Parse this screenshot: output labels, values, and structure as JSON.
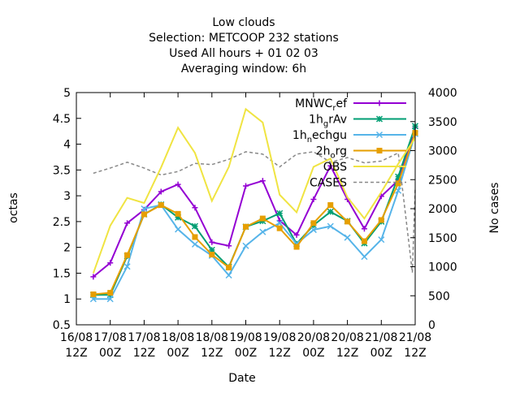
{
  "chart_data": {
    "type": "line",
    "title_lines": [
      "Low clouds",
      "Selection: METCOOP    232 stations",
      "Used  All hours  + 01 02 03",
      "Averaging window:  6h"
    ],
    "xlabel": "Date",
    "ylabel": "octas",
    "y2label": "No cases",
    "ylim": [
      0.5,
      5
    ],
    "y2lim": [
      0,
      4000
    ],
    "yticks": [
      0.5,
      1,
      1.5,
      2,
      2.5,
      3,
      3.5,
      4,
      4.5,
      5
    ],
    "y2ticks": [
      0,
      500,
      1000,
      1500,
      2000,
      2500,
      3000,
      3500,
      4000
    ],
    "xlim": [
      0,
      60
    ],
    "xticks": [
      {
        "x": 0,
        "line1": "16/08",
        "line2": "12Z"
      },
      {
        "x": 6,
        "line1": "17/08",
        "line2": "00Z"
      },
      {
        "x": 12,
        "line1": "17/08",
        "line2": "12Z"
      },
      {
        "x": 18,
        "line1": "18/08",
        "line2": "00Z"
      },
      {
        "x": 24,
        "line1": "18/08",
        "line2": "12Z"
      },
      {
        "x": 30,
        "line1": "19/08",
        "line2": "00Z"
      },
      {
        "x": 36,
        "line1": "19/08",
        "line2": "12Z"
      },
      {
        "x": 42,
        "line1": "20/08",
        "line2": "00Z"
      },
      {
        "x": 48,
        "line1": "20/08",
        "line2": "12Z"
      },
      {
        "x": 54,
        "line1": "21/08",
        "line2": "00Z"
      },
      {
        "x": 60,
        "line1": "21/08",
        "line2": "12Z"
      }
    ],
    "x": [
      3,
      6,
      9,
      12,
      15,
      18,
      21,
      24,
      27,
      30,
      33,
      36,
      39,
      42,
      45,
      48,
      51,
      54,
      57,
      60
    ],
    "series": [
      {
        "name": "MNWC_ref",
        "label_base": "MNWC",
        "label_sub": "r",
        "label_rest": "ef",
        "color": "#9400d3",
        "marker": "plus",
        "values": [
          1.43,
          1.7,
          2.47,
          2.73,
          3.08,
          3.22,
          2.77,
          2.1,
          2.03,
          3.19,
          3.29,
          2.52,
          2.24,
          2.93,
          3.58,
          2.93,
          2.36,
          2.99,
          3.3,
          4.32
        ]
      },
      {
        "name": "1h_grAv",
        "label_base": "1h",
        "label_sub": "g",
        "label_rest": "rAv",
        "color": "#009e73",
        "marker": "star",
        "values": [
          1.08,
          1.08,
          1.83,
          2.64,
          2.83,
          2.58,
          2.41,
          1.95,
          1.62,
          2.4,
          2.51,
          2.66,
          2.07,
          2.43,
          2.69,
          2.51,
          2.08,
          2.5,
          3.37,
          4.35
        ]
      },
      {
        "name": "1h_nechgu",
        "label_base": "1h",
        "label_sub": "n",
        "label_rest": "echgu",
        "color": "#56b4e9",
        "marker": "x",
        "values": [
          1.0,
          1.0,
          1.63,
          2.75,
          2.82,
          2.35,
          2.06,
          1.84,
          1.46,
          2.03,
          2.3,
          2.47,
          2.07,
          2.34,
          2.41,
          2.19,
          1.82,
          2.15,
          3.1,
          4.2
        ]
      },
      {
        "name": "2h_org",
        "label_base": "2h",
        "label_sub": "o",
        "label_rest": "rg",
        "color": "#e69f00",
        "marker": "box",
        "values": [
          1.09,
          1.12,
          1.85,
          2.64,
          2.82,
          2.65,
          2.2,
          1.86,
          1.61,
          2.4,
          2.56,
          2.37,
          2.01,
          2.47,
          2.82,
          2.5,
          2.12,
          2.53,
          3.24,
          4.22
        ]
      },
      {
        "name": "OBS",
        "label_base": "OBS",
        "label_sub": "",
        "label_rest": "",
        "color": "#f0e442",
        "marker": "none",
        "values": [
          1.5,
          2.42,
          2.96,
          2.86,
          3.55,
          4.32,
          3.83,
          2.9,
          3.56,
          4.68,
          4.42,
          3.02,
          2.68,
          3.56,
          3.72,
          2.97,
          2.56,
          3.07,
          3.62,
          4.12
        ]
      }
    ],
    "cases_series": {
      "name": "CASES",
      "color": "#888888",
      "x": [
        3,
        6,
        9,
        12,
        15,
        18,
        21,
        24,
        27,
        30,
        33,
        36,
        39,
        42,
        45,
        48,
        51,
        54,
        57,
        59.5,
        60
      ],
      "values": [
        2610,
        2700,
        2800,
        2700,
        2580,
        2640,
        2780,
        2760,
        2850,
        2980,
        2940,
        2720,
        2940,
        2980,
        2800,
        2880,
        2790,
        2820,
        2960,
        900,
        2350
      ]
    }
  }
}
